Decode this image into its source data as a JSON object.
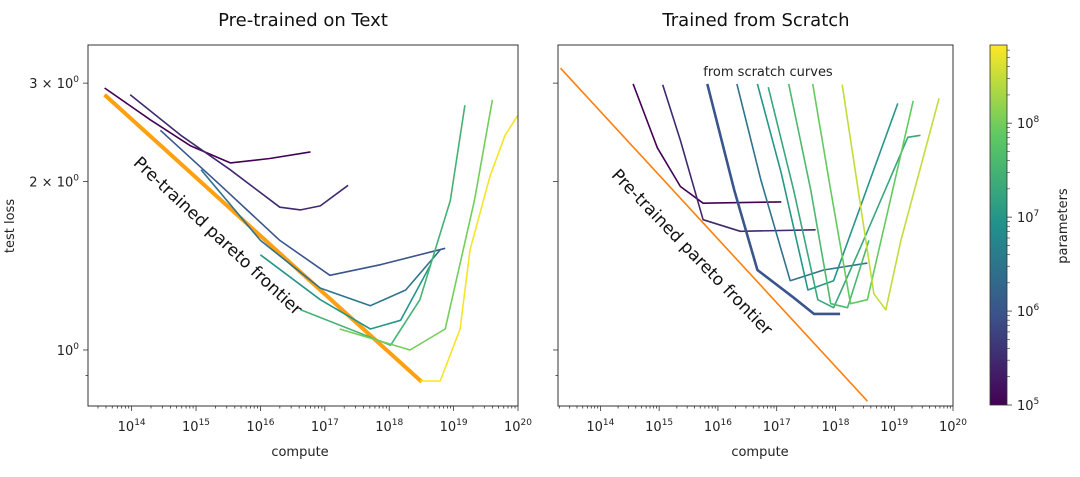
{
  "chart_data": [
    {
      "type": "line",
      "title": "Pre-trained on Text",
      "xlabel": "compute",
      "ylabel": "test loss",
      "xscale": "log",
      "yscale": "log",
      "xlim": [
        21000000000000.0,
        1e+20
      ],
      "ylim": [
        0.794,
        3.51
      ],
      "x_ticks": [
        100000000000000.0,
        1000000000000000.0,
        1e+16,
        1e+17,
        1e+18,
        1e+19,
        1e+20
      ],
      "x_tick_labels": [
        [
          "10",
          "14"
        ],
        [
          "10",
          "15"
        ],
        [
          "10",
          "16"
        ],
        [
          "10",
          "17"
        ],
        [
          "10",
          "18"
        ],
        [
          "10",
          "19"
        ],
        [
          "10",
          "20"
        ]
      ],
      "y_ticks": [
        3,
        2,
        1
      ],
      "y_tick_labels": [
        [
          "3 × 10",
          "0"
        ],
        [
          "2 × 10",
          "0"
        ],
        [
          "10",
          "0"
        ]
      ],
      "grid": false,
      "annotation": "Pre-trained pareto frontier",
      "frontier": {
        "color": "#ffa010",
        "x": [
          38000000000000.0,
          3.2e+18
        ],
        "y": [
          2.86,
          0.877
        ]
      },
      "series": [
        {
          "params": 100000.0,
          "x": [
            38000000000000.0,
            195000000000000.0,
            810000000000000.0,
            3400000000000000.0,
            1.4e+16,
            6e+16
          ],
          "y": [
            2.94,
            2.58,
            2.32,
            2.16,
            2.2,
            2.26
          ]
        },
        {
          "params": 300000.0,
          "x": [
            95000000000000.0,
            580000000000000.0,
            3400000000000000.0,
            2e+16,
            4.2e+16,
            8.5e+16,
            2.3e+17
          ],
          "y": [
            2.86,
            2.42,
            2.1,
            1.8,
            1.78,
            1.81,
            1.97
          ]
        },
        {
          "params": 1000000.0,
          "x": [
            280000000000000.0,
            2400000000000000.0,
            2e+16,
            1.2e+17,
            7.2e+17,
            7.4e+18
          ],
          "y": [
            2.47,
            1.97,
            1.57,
            1.36,
            1.42,
            1.52
          ]
        },
        {
          "params": 3000000.0,
          "x": [
            1200000000000000.0,
            1e+16,
            8.5e+16,
            5.1e+17,
            1.8e+18,
            6.2e+18
          ],
          "y": [
            2.1,
            1.57,
            1.29,
            1.2,
            1.28,
            1.51
          ]
        },
        {
          "params": 10000000.0,
          "x": [
            1e+16,
            8.5e+16,
            5.1e+17,
            1.5e+18,
            4.4e+18
          ],
          "y": [
            1.48,
            1.23,
            1.09,
            1.13,
            1.42
          ]
        },
        {
          "params": 30000000.0,
          "x": [
            4.2e+16,
            1.05e+18,
            3e+18,
            8.9e+18,
            1.5e+19
          ],
          "y": [
            1.18,
            1.02,
            1.23,
            1.85,
            2.74
          ]
        },
        {
          "params": 100000000.0,
          "x": [
            1.7e+17,
            2.1e+18,
            7.4e+18,
            2.1e+19,
            4e+19
          ],
          "y": [
            1.09,
            1.0,
            1.09,
            1.85,
            2.8
          ]
        },
        {
          "params": 600000000.0,
          "x": [
            3e+18,
            6.2e+18,
            1.26e+19,
            1.8e+19,
            3.7e+19,
            6.3e+19,
            1e+20
          ],
          "y": [
            0.88,
            0.88,
            1.09,
            1.51,
            2.05,
            2.42,
            2.63
          ]
        }
      ]
    },
    {
      "type": "line",
      "title": "Trained from Scratch",
      "xlabel": "compute",
      "xscale": "log",
      "yscale": "log",
      "xlim": [
        19000000000000.0,
        1e+20
      ],
      "ylim": [
        0.794,
        3.51
      ],
      "x_ticks": [
        100000000000000.0,
        1000000000000000.0,
        1e+16,
        1e+17,
        1e+18,
        1e+19,
        1e+20
      ],
      "x_tick_labels": [
        [
          "10",
          "14"
        ],
        [
          "10",
          "15"
        ],
        [
          "10",
          "16"
        ],
        [
          "10",
          "17"
        ],
        [
          "10",
          "18"
        ],
        [
          "10",
          "19"
        ],
        [
          "10",
          "20"
        ]
      ],
      "y_ticks": [
        3,
        2,
        1
      ],
      "grid": false,
      "annotation": "Pre-trained pareto frontier",
      "annotation2": "from scratch curves",
      "frontier": {
        "color": "#ff7f0e",
        "x": [
          21000000000000.0,
          3.5e+18
        ],
        "y": [
          3.19,
          0.81
        ]
      },
      "series": [
        {
          "params": 100000.0,
          "x": [
            360000000000000.0,
            930000000000000.0,
            2300000000000000.0,
            5600000000000000.0,
            1.2e+17
          ],
          "y": [
            2.99,
            2.3,
            1.96,
            1.83,
            1.84
          ]
        },
        {
          "params": 300000.0,
          "x": [
            1150000000000000.0,
            2300000000000000.0,
            5600000000000000.0,
            2.4e+16,
            4.6e+17
          ],
          "y": [
            2.98,
            2.37,
            1.71,
            1.63,
            1.64
          ]
        },
        {
          "params": 1000000.0,
          "x": [
            6600000000000000.0,
            1.9e+16,
            4.7e+16,
            1.95e+17,
            4.3e+17,
            1.2e+18
          ],
          "y": [
            2.99,
            1.93,
            1.39,
            1.24,
            1.16,
            1.16
          ]
        },
        {
          "params": 3000000.0,
          "x": [
            2.1e+16,
            5.4e+16,
            1.7e+17,
            6.3e+17,
            3.5e+18
          ],
          "y": [
            2.99,
            2.01,
            1.33,
            1.39,
            1.43
          ]
        },
        {
          "params": 10000000.0,
          "x": [
            4.7e+16,
            1.2e+17,
            3.4e+17,
            9.3e+17,
            1.15e+19
          ],
          "y": [
            2.99,
            2.07,
            1.28,
            1.33,
            2.76
          ]
        },
        {
          "params": 20000000.0,
          "x": [
            7.2e+16,
            1.95e+17,
            5e+17,
            9.3e+17,
            2.7e+18,
            1.7e+19,
            2.8e+19
          ],
          "y": [
            2.95,
            1.93,
            1.23,
            1.19,
            1.53,
            2.4,
            2.42
          ]
        },
        {
          "params": 40000000.0,
          "x": [
            1.6e+17,
            3.8e+17,
            8.3e+17,
            1.6e+18,
            3.7e+18
          ],
          "y": [
            2.99,
            1.93,
            1.21,
            1.19,
            1.57
          ]
        },
        {
          "params": 80000000.0,
          "x": [
            4.1e+17,
            8.3e+17,
            1.8e+18,
            3.5e+18,
            2.1e+19
          ],
          "y": [
            2.99,
            1.93,
            1.21,
            1.23,
            2.79
          ]
        },
        {
          "params": 300000000.0,
          "x": [
            1.3e+18,
            2.7e+18,
            4.5e+18,
            7.2e+18,
            1.3e+19,
            5.8e+19
          ],
          "y": [
            2.98,
            1.8,
            1.26,
            1.18,
            1.57,
            2.82
          ]
        }
      ]
    }
  ],
  "colorbar": {
    "label": "parameters",
    "colormap": "viridis",
    "range": [
      100000.0,
      680000000.0
    ],
    "ticks": [
      100000.0,
      1000000.0,
      10000000.0,
      100000000.0
    ],
    "tick_labels": [
      [
        "10",
        "5"
      ],
      [
        "10",
        "6"
      ],
      [
        "10",
        "7"
      ],
      [
        "10",
        "8"
      ]
    ]
  }
}
